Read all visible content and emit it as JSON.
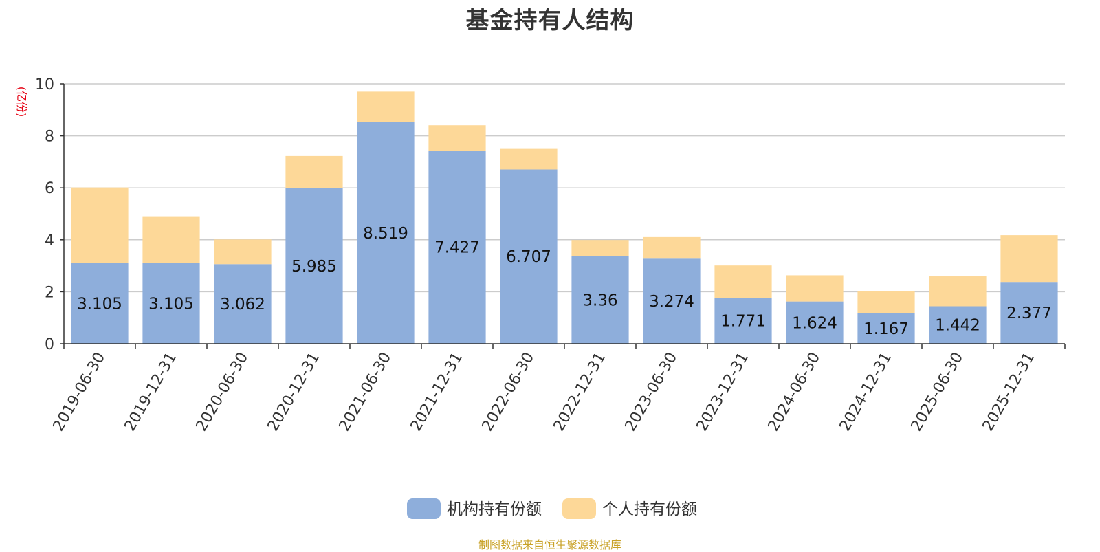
{
  "chart_data": {
    "type": "bar",
    "stacked": true,
    "title": "基金持有人结构",
    "ylabel": "(亿份)",
    "xlabel": "",
    "ylim": [
      0,
      10
    ],
    "yticks": [
      0,
      2,
      4,
      6,
      8,
      10
    ],
    "grid": true,
    "legend_position": "bottom",
    "categories": [
      "2019-06-30",
      "2019-12-31",
      "2020-06-30",
      "2020-12-31",
      "2021-06-30",
      "2021-12-31",
      "2022-06-30",
      "2022-12-31",
      "2023-06-30",
      "2023-12-31",
      "2024-06-30",
      "2024-12-31",
      "2025-06-30",
      "2025-12-31"
    ],
    "series": [
      {
        "name": "机构持有份额",
        "color": "#8eaedb",
        "values": [
          3.105,
          3.105,
          3.062,
          5.985,
          8.519,
          7.427,
          6.707,
          3.36,
          3.274,
          1.771,
          1.624,
          1.167,
          1.442,
          2.377
        ],
        "labels": [
          "3.105",
          "3.105",
          "3.062",
          "5.985",
          "8.519",
          "7.427",
          "6.707",
          "3.36",
          "3.274",
          "1.771",
          "1.624",
          "1.167",
          "1.442",
          "2.377"
        ]
      },
      {
        "name": "个人持有份额",
        "color": "#fdd898",
        "values": [
          2.91,
          1.8,
          0.95,
          1.24,
          1.18,
          0.98,
          0.79,
          0.63,
          0.83,
          1.24,
          1.01,
          0.86,
          1.15,
          1.8
        ]
      }
    ]
  },
  "footer": {
    "source": "制图数据来自恒生聚源数据库"
  }
}
